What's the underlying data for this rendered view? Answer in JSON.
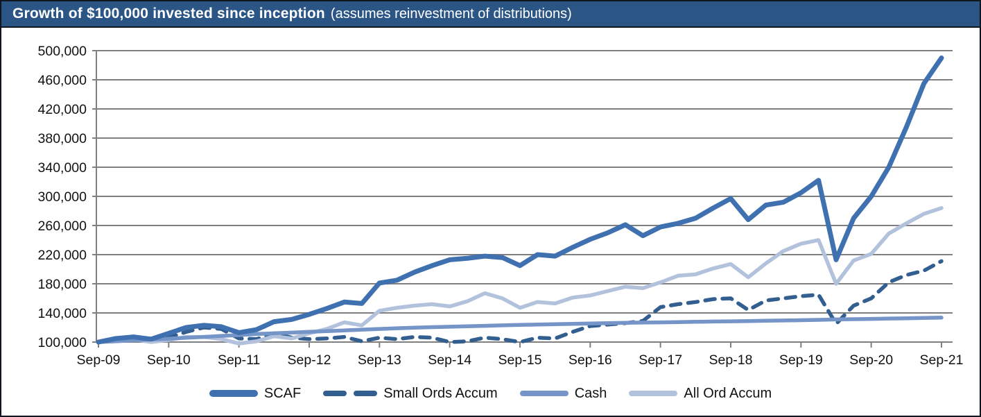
{
  "header": {
    "title_bold": "Growth of $100,000 invested since inception",
    "title_suffix": "(assumes reinvestment of distributions)"
  },
  "colors": {
    "title_bar_bg": "#2b5585",
    "title_text": "#ffffff",
    "frame_border": "#10161f",
    "gridline": "#7f7f7f",
    "axis": "#7f7f7f",
    "axis_text": "#111111",
    "scaf": "#3F70AF",
    "small_ords": "#325F8F",
    "cash": "#7595C8",
    "all_ord": "#B3C2DC"
  },
  "chart_data": {
    "type": "line",
    "title": "Growth of $100,000 invested since inception (assumes reinvestment of distributions)",
    "xlabel": "",
    "ylabel": "",
    "ylim": [
      100000,
      500000
    ],
    "y_step": 40000,
    "grid": "horizontal",
    "legend_position": "bottom",
    "y_tick_labels": [
      "100,000",
      "140,000",
      "180,000",
      "220,000",
      "260,000",
      "300,000",
      "340,000",
      "380,000",
      "420,000",
      "460,000",
      "500,000"
    ],
    "x_tick_labels": [
      "Sep-09",
      "Sep-10",
      "Sep-11",
      "Sep-12",
      "Sep-13",
      "Sep-14",
      "Sep-15",
      "Sep-16",
      "Sep-17",
      "Sep-18",
      "Sep-19",
      "Sep-20",
      "Sep-21"
    ],
    "x_interval": "quarterly",
    "x": [
      "Sep-09",
      "Dec-09",
      "Mar-10",
      "Jun-10",
      "Sep-10",
      "Dec-10",
      "Mar-11",
      "Jun-11",
      "Sep-11",
      "Dec-11",
      "Mar-12",
      "Jun-12",
      "Sep-12",
      "Dec-12",
      "Mar-13",
      "Jun-13",
      "Sep-13",
      "Dec-13",
      "Mar-14",
      "Jun-14",
      "Sep-14",
      "Dec-14",
      "Mar-15",
      "Jun-15",
      "Sep-15",
      "Dec-15",
      "Mar-16",
      "Jun-16",
      "Sep-16",
      "Dec-16",
      "Mar-17",
      "Jun-17",
      "Sep-17",
      "Dec-17",
      "Mar-18",
      "Jun-18",
      "Sep-18",
      "Dec-18",
      "Mar-19",
      "Jun-19",
      "Sep-19",
      "Dec-19",
      "Mar-20",
      "Jun-20",
      "Sep-20",
      "Dec-20",
      "Mar-21",
      "Jun-21",
      "Sep-21"
    ],
    "series": [
      {
        "name": "SCAF",
        "style": "solid",
        "color": "#3F70AF",
        "stroke_width": 7,
        "values": [
          100000,
          105000,
          107000,
          104000,
          112000,
          120000,
          123000,
          121000,
          113000,
          117000,
          128000,
          131000,
          138000,
          146000,
          155000,
          153000,
          181000,
          185000,
          196000,
          205000,
          213000,
          215000,
          218000,
          216000,
          205000,
          220000,
          218000,
          230000,
          241000,
          250000,
          261000,
          246000,
          258000,
          263000,
          270000,
          284000,
          297000,
          268000,
          288000,
          292000,
          305000,
          322000,
          213000,
          270000,
          300000,
          340000,
          395000,
          455000,
          490000
        ]
      },
      {
        "name": "Small Ords Accum",
        "style": "dashed",
        "color": "#325F8F",
        "stroke_width": 5.5,
        "values": [
          100000,
          104000,
          106000,
          101000,
          106000,
          114000,
          120000,
          118000,
          105000,
          104000,
          112000,
          106000,
          104000,
          105000,
          107000,
          101000,
          106000,
          104000,
          107000,
          106000,
          100000,
          101000,
          106000,
          104000,
          100000,
          106000,
          105000,
          114000,
          122000,
          124000,
          126000,
          129000,
          148000,
          152000,
          155000,
          159000,
          160000,
          144000,
          157000,
          160000,
          163000,
          165000,
          125000,
          150000,
          160000,
          182000,
          192000,
          198000,
          211000
        ]
      },
      {
        "name": "Cash",
        "style": "solid",
        "color": "#7595C8",
        "stroke_width": 5.5,
        "values": [
          100000,
          101000,
          102500,
          103500,
          104500,
          106000,
          107000,
          108500,
          109500,
          111000,
          112000,
          113000,
          114000,
          115000,
          116000,
          117000,
          118000,
          119000,
          119800,
          120500,
          121000,
          121700,
          122300,
          123000,
          123500,
          124000,
          124500,
          125000,
          125500,
          126000,
          126400,
          126800,
          127000,
          127400,
          127800,
          128200,
          128500,
          128900,
          129200,
          129600,
          130000,
          130500,
          131000,
          131400,
          131800,
          132300,
          132700,
          133100,
          133500
        ]
      },
      {
        "name": "All Ord Accum",
        "style": "solid",
        "color": "#B3C2DC",
        "stroke_width": 5.5,
        "values": [
          100000,
          103000,
          104000,
          100000,
          103000,
          107000,
          107000,
          104000,
          98000,
          101000,
          108000,
          105000,
          112000,
          118000,
          127000,
          123000,
          143000,
          147000,
          150000,
          152000,
          149000,
          156000,
          167000,
          160000,
          147000,
          155000,
          153000,
          161000,
          164000,
          170000,
          176000,
          174000,
          182000,
          191000,
          193000,
          201000,
          207000,
          189000,
          208000,
          225000,
          235000,
          240000,
          180000,
          212000,
          221000,
          249000,
          263000,
          276000,
          284000
        ]
      }
    ]
  }
}
